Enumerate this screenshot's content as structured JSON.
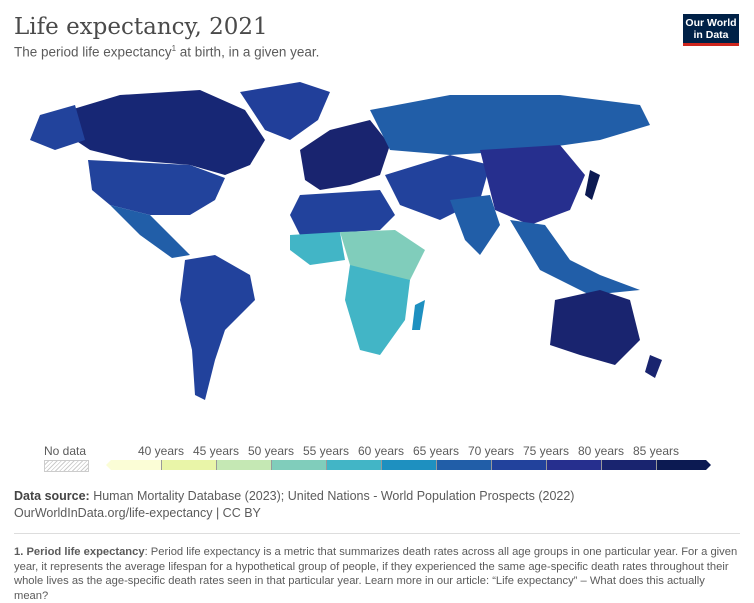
{
  "header": {
    "title": "Life expectancy, 2021",
    "subtitle": "The period life expectancy",
    "subtitle_sup": "1",
    "subtitle_rest": " at birth, in a given year.",
    "logo": "Our World in Data"
  },
  "legend": {
    "no_data": "No data",
    "ticks": [
      "40 years",
      "45 years",
      "50 years",
      "55 years",
      "60 years",
      "65 years",
      "70 years",
      "75 years",
      "80 years",
      "85 years"
    ],
    "colors": [
      "#fbfdd6",
      "#e9f5a8",
      "#c5e8b4",
      "#80cdbb",
      "#42b5c6",
      "#1e90c0",
      "#215ea8",
      "#22429c",
      "#262f8e",
      "#19246f",
      "#0c1a52"
    ]
  },
  "footer": {
    "source_label": "Data source:",
    "source": " Human Mortality Database (2023); United Nations - World Population Prospects (2022)",
    "url": "OurWorldInData.org/life-expectancy | CC BY",
    "note_label": "1. Period life expectancy",
    "note": ": Period life expectancy is a metric that summarizes death rates across all age groups in one particular year. For a given year, it represents the average lifespan for a hypothetical group of people, if they experienced the same age-specific death rates throughout their whole lives as the age-specific death rates seen in that particular year. Learn more in our article: “Life expectancy” – What does this actually mean?"
  }
}
